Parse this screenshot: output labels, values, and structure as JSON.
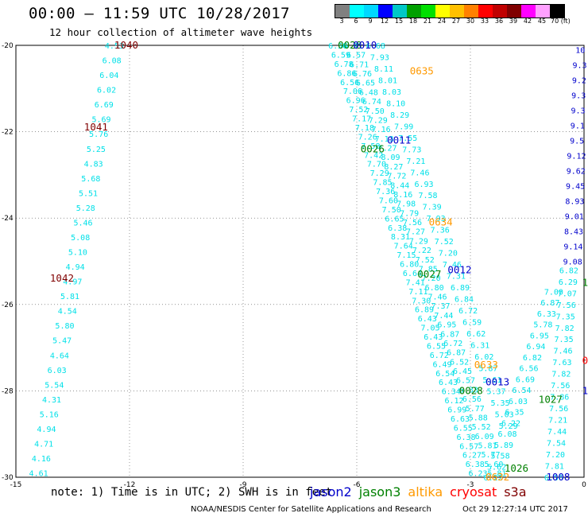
{
  "title": "00:00 – 11:59 UTC 10/28/2017",
  "subtitle": "12 hour collection of altimeter wave heights",
  "legend": {
    "labels": [
      "3",
      "6",
      "9",
      "12",
      "15",
      "18",
      "21",
      "24",
      "27",
      "30",
      "33",
      "36",
      "39",
      "42",
      "45",
      "70 (ft)"
    ],
    "colors": [
      "#808080",
      "#00ffff",
      "#00d8ff",
      "#0000ff",
      "#00c8c8",
      "#00a000",
      "#00e000",
      "#ffff00",
      "#ffc000",
      "#ff8000",
      "#ff0000",
      "#c00000",
      "#800000",
      "#ff00ff",
      "#ffa0ff",
      "#000000"
    ]
  },
  "note": "note: 1) Time is in UTC; 2) SWH is in feet",
  "satellites": [
    {
      "name": "jason2",
      "color": "#0000cc"
    },
    {
      "name": "jason3",
      "color": "#008000"
    },
    {
      "name": "altika",
      "color": "#ff9900"
    },
    {
      "name": "cryosat",
      "color": "#ff0000"
    },
    {
      "name": "s3a",
      "color": "#800000"
    }
  ],
  "credit_left": "NOAA/NESDIS Center for Satellite Applications and Research",
  "credit_right": "Oct 29 12:27:14 UTC 2017",
  "chart_data": {
    "type": "scatter",
    "xlim": [
      -15,
      0
    ],
    "ylim": [
      -30,
      -20
    ],
    "xticks": [
      "-15",
      "-12",
      "-9",
      "-6",
      "-3",
      "0"
    ],
    "yticks": [
      "-20",
      "-22",
      "-24",
      "-26",
      "-28",
      "-30"
    ],
    "grid": true,
    "pass_labels": [
      {
        "text": "1040",
        "sat": "s3a",
        "x": -12.4,
        "y": -20
      },
      {
        "text": "1041",
        "sat": "s3a",
        "x": -13.2,
        "y": -21.9
      },
      {
        "text": "1042",
        "sat": "s3a",
        "x": -14.1,
        "y": -25.4
      },
      {
        "text": "0028",
        "sat": "jason3",
        "x": -6.5,
        "y": -20
      },
      {
        "text": "0010",
        "sat": "jason2",
        "x": -6.1,
        "y": -20
      },
      {
        "text": "0635",
        "sat": "altika",
        "x": -4.6,
        "y": -20.6
      },
      {
        "text": "0011",
        "sat": "jason2",
        "x": -5.2,
        "y": -22.2
      },
      {
        "text": "0026",
        "sat": "jason3",
        "x": -5.9,
        "y": -22.4
      },
      {
        "text": "0634",
        "sat": "altika",
        "x": -4.1,
        "y": -24.1
      },
      {
        "text": "0012",
        "sat": "jason2",
        "x": -3.6,
        "y": -25.2
      },
      {
        "text": "0027",
        "sat": "jason3",
        "x": -4.4,
        "y": -25.3
      },
      {
        "text": "0633",
        "sat": "altika",
        "x": -2.9,
        "y": -27.4
      },
      {
        "text": "0013",
        "sat": "jason2",
        "x": -2.6,
        "y": -27.8
      },
      {
        "text": "0028",
        "sat": "jason3",
        "x": -3.3,
        "y": -28.0
      },
      {
        "text": "1027",
        "sat": "jason3",
        "x": -1.2,
        "y": -28.2
      },
      {
        "text": "1026",
        "sat": "jason3",
        "x": -2.1,
        "y": -29.8
      },
      {
        "text": "0632",
        "sat": "altika",
        "x": -2.6,
        "y": -30
      },
      {
        "text": "1008",
        "sat": "jason2",
        "x": -1.0,
        "y": -30
      },
      {
        "text": "10",
        "sat": "jason3",
        "x": -0.05,
        "y": -25.5
      },
      {
        "text": "1",
        "sat": "jason2",
        "x": -0.05,
        "y": -28.0
      },
      {
        "text": "0",
        "sat": "cryosat",
        "x": -0.05,
        "y": -27.3
      }
    ],
    "tracks": [
      {
        "sat": "s3a",
        "color": "#00e0e8",
        "start": [
          -12.4,
          -20
        ],
        "end": [
          -14.4,
          -29.9
        ],
        "values": [
          "4.53",
          "6.08",
          "6.04",
          "6.02",
          "6.69",
          "5.69",
          "5.76",
          "5.25",
          "4.83",
          "5.68",
          "5.51",
          "5.28",
          "5.46",
          "5.08",
          "5.10",
          "4.94",
          "4.97",
          "5.81",
          "4.54",
          "5.80",
          "5.47",
          "4.64",
          "6.03",
          "5.54",
          "4.31",
          "5.16",
          "4.94",
          "4.71",
          "4.16",
          "4.61"
        ]
      },
      {
        "sat": "jason3",
        "color": "#00e0e8",
        "start": [
          -6.5,
          -20
        ],
        "end": [
          -2.8,
          -29.9
        ],
        "values": [
          "6.56",
          "6.59",
          "6.78",
          "6.86",
          "6.56",
          "7.06",
          "6.96",
          "7.52",
          "7.17",
          "7.18",
          "7.26",
          "7.58",
          "7.42",
          "7.70",
          "7.29",
          "7.85",
          "7.36",
          "7.60",
          "7.50",
          "6.65",
          "6.38",
          "8.31",
          "7.64",
          "7.15",
          "6.80",
          "6.64",
          "7.41",
          "7.11",
          "7.30",
          "6.89",
          "6.43",
          "7.05",
          "6.43",
          "6.55",
          "6.72",
          "6.49",
          "6.54",
          "6.43",
          "6.34",
          "6.12",
          "6.99",
          "6.63",
          "6.55",
          "6.38",
          "6.57",
          "6.27",
          "6.38",
          "6.23"
        ]
      },
      {
        "sat": "jason2",
        "color": "#00e0e8",
        "start": [
          -6.1,
          -20
        ],
        "end": [
          -2.3,
          -29.9
        ],
        "values": [
          "6.91",
          "6.57",
          "6.71",
          "6.76",
          "6.65",
          "6.48",
          "6.74",
          "7.50",
          "7.29",
          "7.16",
          "7.13",
          "7.27",
          "8.09",
          "8.27",
          "7.72",
          "8.44",
          "8.16",
          "7.98",
          "7.79",
          "7.56",
          "7.27",
          "7.29",
          "7.22",
          "7.52",
          "7.85",
          "7.20",
          "6.80",
          "7.46",
          "7.37",
          "7.44",
          "6.95",
          "6.87",
          "6.72",
          "6.87",
          "6.52",
          "6.45",
          "6.57",
          "6.33",
          "6.56",
          "5.77",
          "5.88",
          "5.52",
          "6.09",
          "5.81",
          "5.77",
          "5.60",
          "5.81"
        ]
      },
      {
        "sat": "altika",
        "color": "#00e0e8",
        "start": [
          -5.5,
          -20
        ],
        "end": [
          -2.0,
          -28.8
        ],
        "values": [
          "6.68",
          "7.93",
          "8.11",
          "8.01",
          "8.03",
          "8.10",
          "8.29",
          "7.99",
          "7.55",
          "7.73",
          "7.21",
          "7.46",
          "6.93",
          "7.58",
          "7.39",
          "7.93",
          "7.36",
          "7.52",
          "7.20",
          "7.46",
          "7.31",
          "6.89",
          "6.84",
          "6.72",
          "6.59",
          "6.62",
          "6.31",
          "6.02",
          "5.87",
          "5.61",
          "5.37",
          "5.35",
          "5.03",
          "5.29"
        ]
      },
      {
        "sat": "jason3",
        "color": "#00e0e8",
        "start": [
          -2.4,
          -30
        ],
        "end": [
          -0.8,
          -25.7
        ],
        "values": [
          "6.22",
          "5.62",
          "5.58",
          "5.89",
          "6.08",
          "6.22",
          "6.35",
          "6.03",
          "6.54",
          "6.69",
          "6.56",
          "6.82",
          "6.94",
          "6.95",
          "5.78",
          "6.33",
          "6.87",
          "7.00"
        ]
      },
      {
        "sat": "jason2",
        "color": "#00e0e8",
        "start": [
          -0.8,
          -30
        ],
        "end": [
          -0.4,
          -25.2
        ],
        "values": [
          "6.56",
          "7.81",
          "7.20",
          "7.54",
          "7.44",
          "7.21",
          "7.56",
          "7.86",
          "7.56",
          "7.82",
          "7.63",
          "7.46",
          "7.35",
          "7.82",
          "7.35",
          "7.56",
          "7.07",
          "6.29",
          "6.82"
        ]
      },
      {
        "sat": "jason2",
        "color": "#0000cc",
        "start": [
          -0.1,
          -20.1
        ],
        "end": [
          -0.3,
          -25.0
        ],
        "values": [
          "10",
          "9.3",
          "9.2",
          "9.3",
          "9.3",
          "9.1",
          "9.5",
          "9.12",
          "9.62",
          "9.45",
          "8.93",
          "9.01",
          "8.43",
          "9.14",
          "9.08"
        ]
      }
    ]
  }
}
